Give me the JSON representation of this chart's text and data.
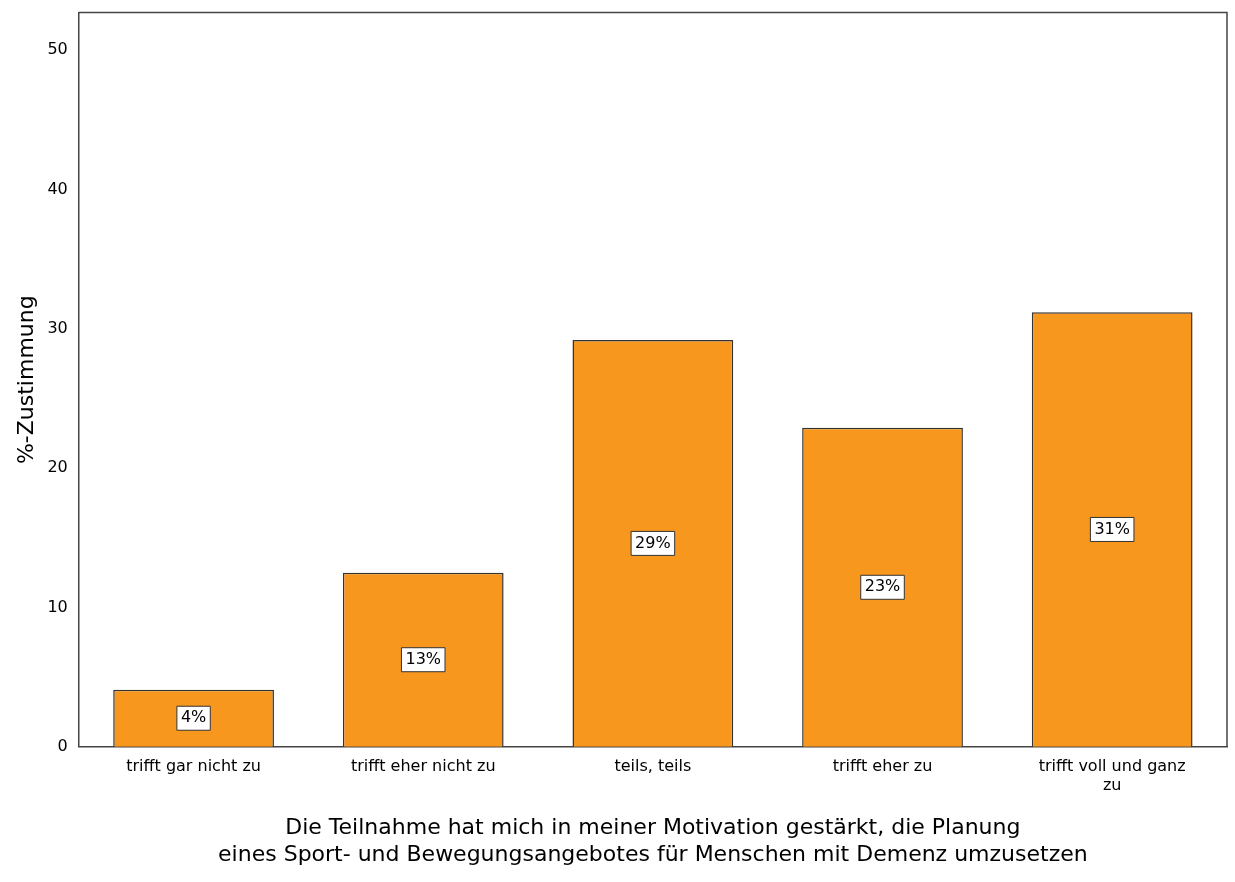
{
  "chart_data": {
    "type": "bar",
    "categories": [
      "trifft gar nicht zu",
      "trifft eher nicht zu",
      "teils, teils",
      "trifft eher zu",
      "trifft voll und ganz zu"
    ],
    "values": [
      4.1,
      12.5,
      29.2,
      22.9,
      31.2
    ],
    "value_labels": [
      "4%",
      "13%",
      "29%",
      "23%",
      "31%"
    ],
    "color": "#f7971e",
    "xlabel": "Die Teilnahme hat mich in meiner Motivation gestärkt, die Planung eines Sport- und Bewegungsangebotes für Menschen mit Demenz umzusetzen",
    "ylabel": "%-Zustimmung",
    "ylim": [
      0,
      52.7
    ],
    "yticks": [
      0,
      10,
      20,
      30,
      40,
      50
    ],
    "grid": false,
    "legend": false
  }
}
